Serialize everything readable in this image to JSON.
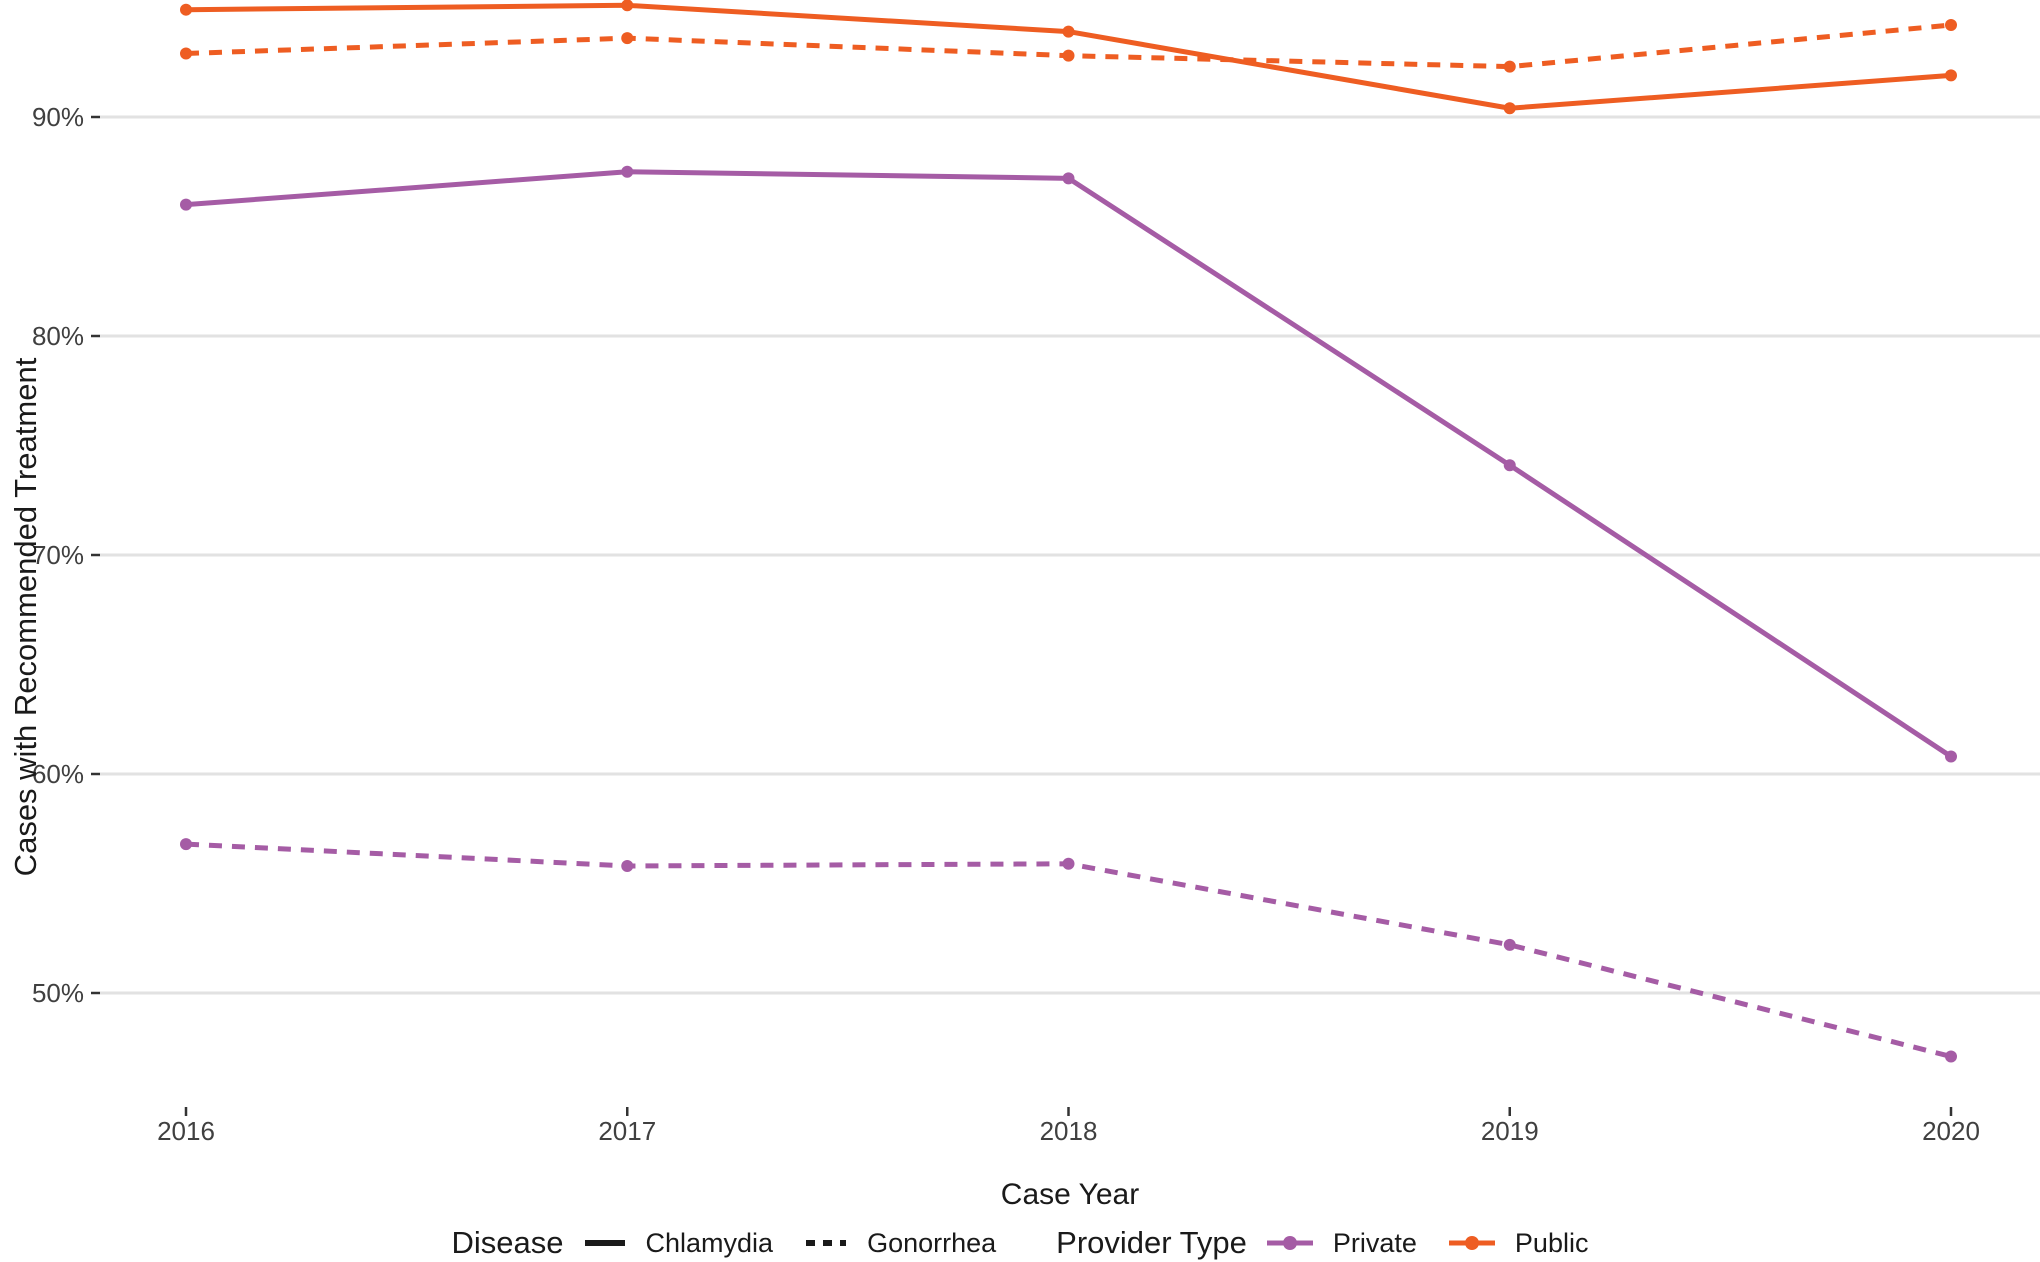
{
  "chart_data": {
    "type": "line",
    "title": "",
    "xlabel": "Case Year",
    "ylabel": "Cases with Recommended Treatment",
    "x": [
      2016,
      2017,
      2018,
      2019,
      2020
    ],
    "x_tick_labels": [
      "2016",
      "2017",
      "2018",
      "2019",
      "2020"
    ],
    "y_ticks": [
      50,
      60,
      70,
      80,
      90
    ],
    "y_tick_labels": [
      "50%",
      "60%",
      "70%",
      "80%",
      "90%"
    ],
    "ylim": [
      44.8,
      95.3
    ],
    "grid": "horizontal-major-only",
    "legend_position": "bottom",
    "series": [
      {
        "name": "Public Chlamydia",
        "provider_type": "Public",
        "disease": "Chlamydia",
        "line_style": "solid",
        "color": "#EE5D22",
        "values": [
          94.9,
          95.1,
          93.9,
          90.4,
          91.9
        ]
      },
      {
        "name": "Public Gonorrhea",
        "provider_type": "Public",
        "disease": "Gonorrhea",
        "line_style": "dashed",
        "color": "#EE5D22",
        "values": [
          92.9,
          93.6,
          92.8,
          92.3,
          94.2
        ]
      },
      {
        "name": "Private Chlamydia",
        "provider_type": "Private",
        "disease": "Chlamydia",
        "line_style": "solid",
        "color": "#A55CA5",
        "values": [
          86.0,
          87.5,
          87.2,
          74.1,
          60.8
        ]
      },
      {
        "name": "Private Gonorrhea",
        "provider_type": "Private",
        "disease": "Gonorrhea",
        "line_style": "dashed",
        "color": "#A55CA5",
        "values": [
          56.8,
          55.8,
          55.9,
          52.2,
          47.1
        ]
      }
    ]
  },
  "legend": {
    "disease_title": "Disease",
    "disease_items": [
      {
        "label": "Chlamydia",
        "style": "solid"
      },
      {
        "label": "Gonorrhea",
        "style": "dashed"
      }
    ],
    "provider_title": "Provider Type",
    "provider_items": [
      {
        "label": "Private",
        "color": "#A55CA5"
      },
      {
        "label": "Public",
        "color": "#EE5D22"
      }
    ]
  },
  "colors": {
    "public_orange": "#EE5D22",
    "private_purple": "#A55CA5",
    "gridline": "#E2E2E2",
    "tick_text": "#404040",
    "axis_text": "#1a1a1a"
  }
}
